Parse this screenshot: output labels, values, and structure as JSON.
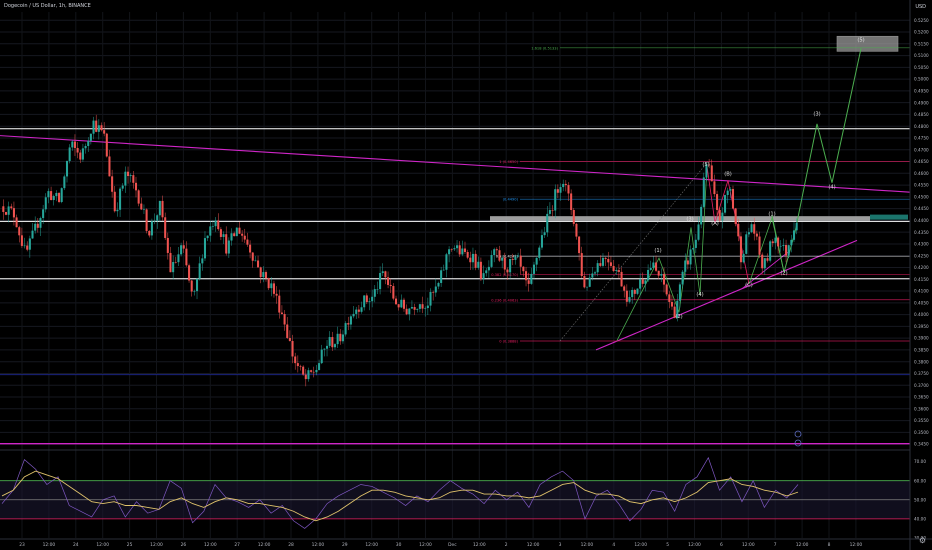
{
  "header": {
    "title": "Dogecoin / US Dollar, 1h, BINANCE",
    "currency": "USD"
  },
  "chart_data": [
    {
      "type": "candlestick",
      "title": "Dogecoin / US Dollar, 1h, BINANCE",
      "x_ticks": [
        "23",
        "12:00",
        "24",
        "12:00",
        "25",
        "12:00",
        "26",
        "12:00",
        "27",
        "12:00",
        "28",
        "12:00",
        "29",
        "12:00",
        "30",
        "12:00",
        "Dec",
        "12:00",
        "2",
        "12:00",
        "3",
        "12:00",
        "4",
        "12:00",
        "5",
        "12:00",
        "6",
        "12:00",
        "7",
        "12:00",
        "8",
        "12:00"
      ],
      "y_ticks": [
        "0.5250",
        "0.5200",
        "0.5150",
        "0.5100",
        "0.5050",
        "0.5000",
        "0.4950",
        "0.4900",
        "0.4850",
        "0.4800",
        "0.4750",
        "0.4700",
        "0.4650",
        "0.4600",
        "0.4550",
        "0.4500",
        "0.4450",
        "0.4400",
        "0.4350",
        "0.4300",
        "0.4250",
        "0.4200",
        "0.4150",
        "0.4100",
        "0.4050",
        "0.4000",
        "0.3950",
        "0.3900",
        "0.3850",
        "0.3800",
        "0.3750",
        "0.3700",
        "0.3650",
        "0.3600",
        "0.3550",
        "0.3500",
        "0.3450"
      ],
      "ylim": [
        0.3425,
        0.5285
      ],
      "horizontal_levels": [
        {
          "value": 0.4789,
          "label": "0.4789",
          "color": "#ffffff"
        },
        {
          "value": 0.4396,
          "label": "0.4396",
          "color": "#ffffff"
        },
        {
          "value": 0.4152,
          "label": "0.4152",
          "color": "#ffffff"
        }
      ],
      "current_price": {
        "value": 0.4414,
        "label": "0.4414"
      },
      "fib_levels": [
        {
          "label": "1.618 (0.5133)",
          "value": 0.5133,
          "color": "#4caf50"
        },
        {
          "label": "1 (0.4650)",
          "value": 0.465,
          "color": "#e91e63"
        },
        {
          "label": "(0.4490)",
          "value": 0.449,
          "color": "#2196f3"
        },
        {
          "label": "0.5 (0.4248)",
          "value": 0.4248,
          "color": "#ffffff"
        },
        {
          "label": "0.382 (0.4170)",
          "value": 0.417,
          "color": "#e91e63"
        },
        {
          "label": "0.236 (0.4063)",
          "value": 0.4063,
          "color": "#e91e63"
        },
        {
          "label": "0 (0.3888)",
          "value": 0.3888,
          "color": "#e91e63"
        }
      ],
      "wave_labels": [
        {
          "text": "(5)",
          "x": 861,
          "price": 0.516
        },
        {
          "text": "(3)",
          "x": 817,
          "price": 0.4845
        },
        {
          "text": "(4)",
          "x": 832,
          "price": 0.4535
        },
        {
          "text": "(5)",
          "x": 706,
          "price": 0.463
        },
        {
          "text": "(B)",
          "x": 728,
          "price": 0.459
        },
        {
          "text": "(A)",
          "x": 715,
          "price": 0.438
        },
        {
          "text": "(3)",
          "x": 690,
          "price": 0.44
        },
        {
          "text": "(1)",
          "x": 658,
          "price": 0.4265
        },
        {
          "text": "(2)",
          "x": 679,
          "price": 0.3985
        },
        {
          "text": "(4)",
          "x": 700,
          "price": 0.408
        },
        {
          "text": "(1)",
          "x": 772,
          "price": 0.442
        },
        {
          "text": "(C)",
          "x": 749,
          "price": 0.412
        },
        {
          "text": "(2)",
          "x": 784,
          "price": 0.417
        }
      ],
      "projection": [
        [
          772,
          0.442
        ],
        [
          784,
          0.418
        ],
        [
          795,
          0.435
        ],
        [
          817,
          0.481
        ],
        [
          832,
          0.456
        ],
        [
          861,
          0.513
        ]
      ],
      "price_path": [
        0.446,
        0.4425,
        0.425,
        0.438,
        0.452,
        0.448,
        0.472,
        0.467,
        0.482,
        0.476,
        0.444,
        0.46,
        0.452,
        0.435,
        0.446,
        0.418,
        0.429,
        0.405,
        0.432,
        0.442,
        0.428,
        0.437,
        0.429,
        0.418,
        0.412,
        0.4,
        0.381,
        0.372,
        0.377,
        0.388,
        0.389,
        0.4,
        0.405,
        0.407,
        0.418,
        0.406,
        0.402,
        0.405,
        0.405,
        0.413,
        0.43,
        0.426,
        0.425,
        0.415,
        0.426,
        0.42,
        0.423,
        0.41,
        0.43,
        0.445,
        0.459,
        0.442,
        0.411,
        0.421,
        0.425,
        0.418,
        0.406,
        0.414,
        0.421,
        0.414,
        0.4,
        0.42,
        0.432,
        0.466,
        0.439,
        0.455,
        0.425,
        0.439,
        0.419,
        0.434,
        0.426,
        0.4414
      ]
    },
    {
      "type": "line",
      "title": "RSI",
      "y_ticks": [
        "70.00",
        "60.00",
        "50.00",
        "40.00",
        "30.00"
      ],
      "ylim": [
        30,
        75
      ],
      "levels": [
        {
          "value": 60,
          "color": "#4caf50"
        },
        {
          "value": 50,
          "color": "#808080"
        },
        {
          "value": 40,
          "color": "#e91e63"
        }
      ],
      "series": [
        {
          "color": "#7e57c2",
          "values": [
            48,
            55,
            71,
            66,
            58,
            62,
            47,
            44,
            41,
            50,
            52,
            41,
            49,
            43,
            45,
            60,
            56,
            38,
            44,
            58,
            51,
            49,
            46,
            50,
            43,
            47,
            39,
            35,
            40,
            48,
            52,
            55,
            58,
            57,
            54,
            51,
            47,
            52,
            49,
            55,
            60,
            56,
            53,
            48,
            55,
            50,
            54,
            46,
            58,
            62,
            65,
            60,
            40,
            52,
            55,
            48,
            39,
            45,
            55,
            54,
            44,
            58,
            62,
            72,
            55,
            62,
            49,
            60,
            46,
            55,
            51,
            58
          ]
        },
        {
          "color": "#e0c36b",
          "values": [
            52,
            55,
            62,
            65,
            63,
            61,
            57,
            53,
            49,
            48,
            49,
            47,
            47,
            46,
            45,
            49,
            51,
            48,
            46,
            49,
            51,
            50,
            48,
            48,
            47,
            46,
            44,
            41,
            39,
            41,
            44,
            48,
            52,
            55,
            55,
            54,
            52,
            51,
            50,
            51,
            54,
            55,
            55,
            53,
            53,
            52,
            52,
            51,
            52,
            55,
            58,
            59,
            55,
            53,
            53,
            52,
            49,
            48,
            50,
            51,
            49,
            51,
            54,
            59,
            60,
            61,
            58,
            57,
            55,
            54,
            52,
            54
          ]
        }
      ]
    }
  ]
}
